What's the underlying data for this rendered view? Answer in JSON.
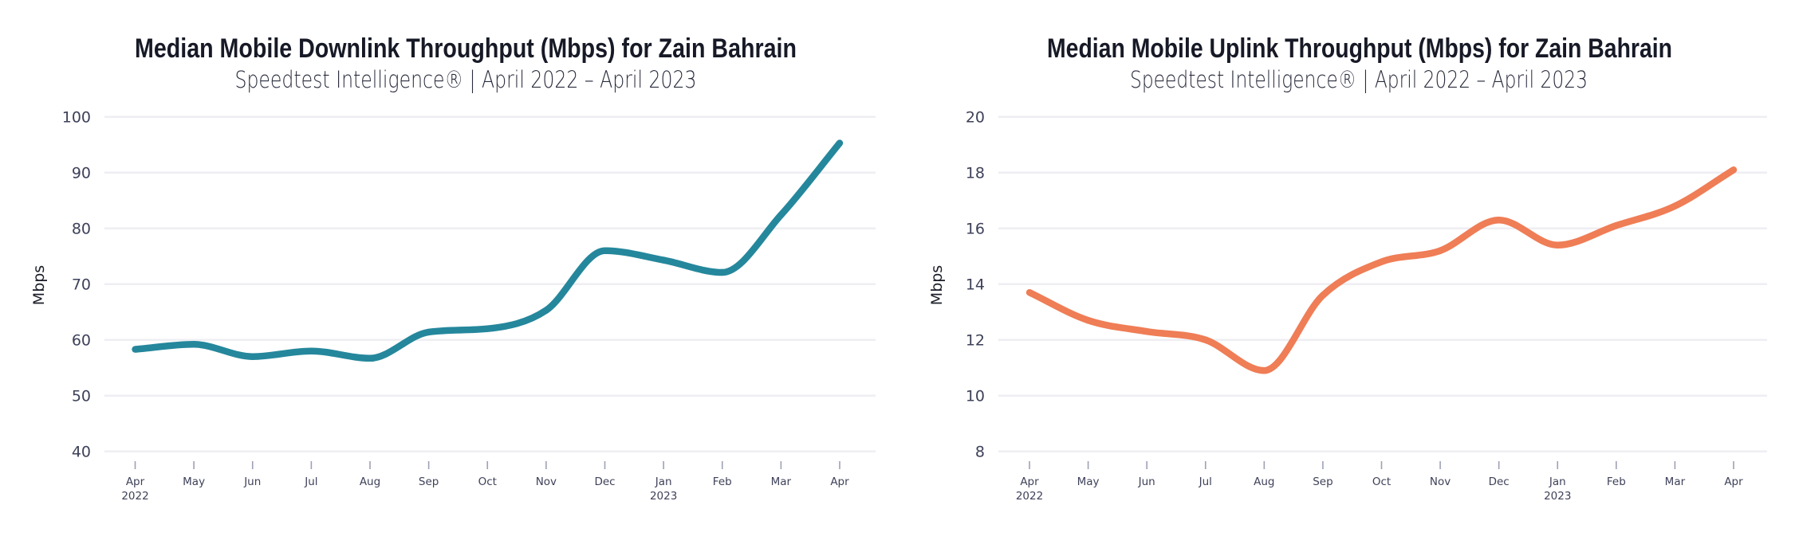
{
  "chart_data": [
    {
      "type": "line",
      "title": "Median Mobile Downlink Throughput (Mbps) for Zain Bahrain",
      "subtitle": "Speedtest Intelligence® | April 2022 – April 2023",
      "xlabel": "",
      "ylabel": "Mbps",
      "ylim": [
        40,
        100
      ],
      "yticks": [
        "40",
        "50",
        "60",
        "70",
        "80",
        "90",
        "100"
      ],
      "grid": true,
      "legend": "none",
      "x_tick_labels": [
        {
          "month": "Apr",
          "year": "2022"
        },
        {
          "month": "May",
          "year": ""
        },
        {
          "month": "Jun",
          "year": ""
        },
        {
          "month": "Jul",
          "year": ""
        },
        {
          "month": "Aug",
          "year": ""
        },
        {
          "month": "Sep",
          "year": ""
        },
        {
          "month": "Oct",
          "year": ""
        },
        {
          "month": "Nov",
          "year": ""
        },
        {
          "month": "Dec",
          "year": ""
        },
        {
          "month": "Jan",
          "year": "2023"
        },
        {
          "month": "Feb",
          "year": ""
        },
        {
          "month": "Mar",
          "year": ""
        },
        {
          "month": "Apr",
          "year": ""
        }
      ],
      "x": [
        "2022-04",
        "2022-05",
        "2022-06",
        "2022-07",
        "2022-08",
        "2022-09",
        "2022-10",
        "2022-11",
        "2022-12",
        "2023-01",
        "2023-02",
        "2023-03",
        "2023-04"
      ],
      "series": [
        {
          "name": "Zain Bahrain Downlink",
          "color": "#25879c",
          "values": [
            58.3,
            59.2,
            57.0,
            58.0,
            56.7,
            61.4,
            62.0,
            65.3,
            76.0,
            74.3,
            72.1,
            82.4,
            95.3
          ]
        }
      ]
    },
    {
      "type": "line",
      "title": "Median Mobile Uplink Throughput (Mbps) for Zain Bahrain",
      "subtitle": "Speedtest Intelligence® | April 2022 – April 2023",
      "xlabel": "",
      "ylabel": "Mbps",
      "ylim": [
        8,
        20
      ],
      "yticks": [
        "8",
        "10",
        "12",
        "14",
        "16",
        "18",
        "20"
      ],
      "grid": true,
      "legend": "none",
      "x_tick_labels": [
        {
          "month": "Apr",
          "year": "2022"
        },
        {
          "month": "May",
          "year": ""
        },
        {
          "month": "Jun",
          "year": ""
        },
        {
          "month": "Jul",
          "year": ""
        },
        {
          "month": "Aug",
          "year": ""
        },
        {
          "month": "Sep",
          "year": ""
        },
        {
          "month": "Oct",
          "year": ""
        },
        {
          "month": "Nov",
          "year": ""
        },
        {
          "month": "Dec",
          "year": ""
        },
        {
          "month": "Jan",
          "year": "2023"
        },
        {
          "month": "Feb",
          "year": ""
        },
        {
          "month": "Mar",
          "year": ""
        },
        {
          "month": "Apr",
          "year": ""
        }
      ],
      "x": [
        "2022-04",
        "2022-05",
        "2022-06",
        "2022-07",
        "2022-08",
        "2022-09",
        "2022-10",
        "2022-11",
        "2022-12",
        "2023-01",
        "2023-02",
        "2023-03",
        "2023-04"
      ],
      "series": [
        {
          "name": "Zain Bahrain Uplink",
          "color": "#ef7d56",
          "values": [
            13.7,
            12.7,
            12.3,
            12.0,
            10.9,
            13.6,
            14.8,
            15.2,
            16.3,
            15.4,
            16.1,
            16.8,
            18.1
          ]
        }
      ]
    }
  ]
}
